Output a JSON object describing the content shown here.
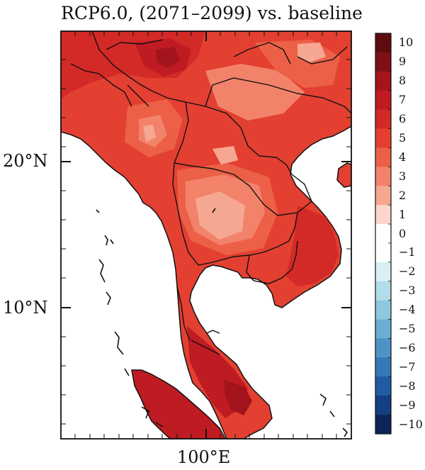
{
  "title": "RCP6.0, (2071–2099) vs. baseline",
  "axes": {
    "y_ticks": [
      {
        "label": "20°N",
        "value": 20
      },
      {
        "label": "10°N",
        "value": 10
      }
    ],
    "x_ticks": [
      {
        "label": "100°E",
        "value": 100
      }
    ],
    "lon_range": [
      90,
      110
    ],
    "lat_range": [
      1,
      29
    ]
  },
  "colorbar": {
    "min": -10,
    "max": 10,
    "labels": [
      "10",
      "9",
      "8",
      "7",
      "6",
      "5",
      "4",
      "3",
      "2",
      "1",
      "0",
      "−1",
      "−2",
      "−3",
      "−4",
      "−5",
      "−6",
      "−7",
      "−8",
      "−9",
      "−10"
    ],
    "colors": [
      "#5e0b0f",
      "#7e1015",
      "#a3141c",
      "#bf1b22",
      "#d42a27",
      "#e34032",
      "#ec6047",
      "#f2836a",
      "#f6a792",
      "#fbd6cd",
      "#ffffff",
      "#ffffff",
      "#d8eff6",
      "#b0dde9",
      "#8dc8de",
      "#6aaed2",
      "#4d93c6",
      "#3478b8",
      "#215ca3",
      "#133f83",
      "#0b2558"
    ]
  },
  "map": {
    "land_color": "#e34032",
    "ocean_color": "#ffffff"
  }
}
